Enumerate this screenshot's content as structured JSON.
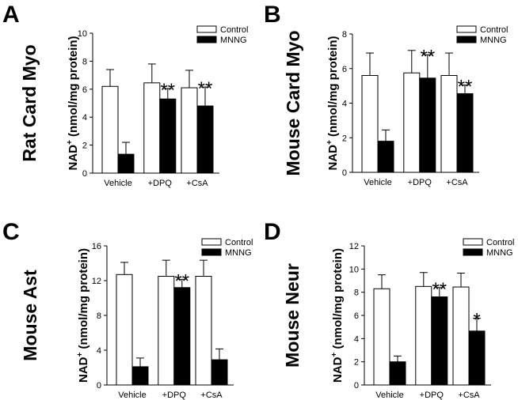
{
  "chart_data": [
    {
      "panel": "A",
      "title": "Rat Card Myo",
      "type": "bar",
      "ylabel": "NAD",
      "ylabel_sup": "+",
      "ylabel_unit": " (nmol/mg protein)",
      "ylim": [
        0,
        10
      ],
      "yticks": [
        0,
        2,
        4,
        6,
        8,
        10
      ],
      "categories": [
        "Vehicle",
        "+DPQ",
        "+CsA"
      ],
      "legend": "top-right",
      "series": [
        {
          "name": "Control",
          "fill": "#ffffff",
          "values": [
            6.2,
            6.45,
            6.1
          ],
          "errors": [
            1.2,
            1.35,
            1.25
          ]
        },
        {
          "name": "MNNG",
          "fill": "#000000",
          "values": [
            1.35,
            5.3,
            4.8
          ],
          "errors": [
            0.85,
            0.75,
            1.35
          ]
        }
      ],
      "annotations": [
        {
          "category": 1,
          "series": 1,
          "text": "**"
        },
        {
          "category": 2,
          "series": 1,
          "text": "**"
        }
      ]
    },
    {
      "panel": "B",
      "title": "Mouse Card Myo",
      "type": "bar",
      "ylabel": "NAD",
      "ylabel_sup": "+",
      "ylabel_unit": " (nmol/mg protein)",
      "ylim": [
        0,
        8
      ],
      "yticks": [
        0,
        2,
        4,
        6,
        8
      ],
      "categories": [
        "Vehicle",
        "+DPQ",
        "+CsA"
      ],
      "legend": "top-right",
      "series": [
        {
          "name": "Control",
          "fill": "#ffffff",
          "values": [
            5.6,
            5.75,
            5.6
          ],
          "errors": [
            1.3,
            1.3,
            1.3
          ]
        },
        {
          "name": "MNNG",
          "fill": "#000000",
          "values": [
            1.8,
            5.45,
            4.55
          ],
          "errors": [
            0.65,
            1.35,
            0.5
          ]
        }
      ],
      "annotations": [
        {
          "category": 1,
          "series": 1,
          "text": "**"
        },
        {
          "category": 2,
          "series": 1,
          "text": "**"
        }
      ]
    },
    {
      "panel": "C",
      "title": "Mouse Ast",
      "type": "bar",
      "ylabel": "NAD",
      "ylabel_sup": "+",
      "ylabel_unit": " (nmol/mg protein)",
      "ylim": [
        0,
        16
      ],
      "yticks": [
        0,
        4,
        8,
        12,
        16
      ],
      "categories": [
        "Vehicle",
        "+DPQ",
        "+CsA"
      ],
      "legend": "top-right",
      "series": [
        {
          "name": "Control",
          "fill": "#ffffff",
          "values": [
            12.7,
            12.5,
            12.5
          ],
          "errors": [
            1.4,
            1.85,
            1.85
          ]
        },
        {
          "name": "MNNG",
          "fill": "#000000",
          "values": [
            2.1,
            11.2,
            2.9
          ],
          "errors": [
            1.0,
            0.95,
            1.25
          ]
        }
      ],
      "annotations": [
        {
          "category": 1,
          "series": 1,
          "text": "**"
        }
      ]
    },
    {
      "panel": "D",
      "title": "Mouse Neur",
      "type": "bar",
      "ylabel": "NAD",
      "ylabel_sup": "+",
      "ylabel_unit": " (nmol/mg protein)",
      "ylim": [
        0,
        12
      ],
      "yticks": [
        0,
        2,
        4,
        6,
        8,
        10,
        12
      ],
      "categories": [
        "Vehicle",
        "+DPQ",
        "+CsA"
      ],
      "legend": "top-right",
      "series": [
        {
          "name": "Control",
          "fill": "#ffffff",
          "values": [
            8.3,
            8.5,
            8.45
          ],
          "errors": [
            1.2,
            1.2,
            1.2
          ]
        },
        {
          "name": "MNNG",
          "fill": "#000000",
          "values": [
            2.0,
            7.6,
            4.65
          ],
          "errors": [
            0.5,
            0.8,
            1.1
          ]
        }
      ],
      "annotations": [
        {
          "category": 1,
          "series": 1,
          "text": "**"
        },
        {
          "category": 2,
          "series": 1,
          "text": "*"
        }
      ]
    }
  ]
}
